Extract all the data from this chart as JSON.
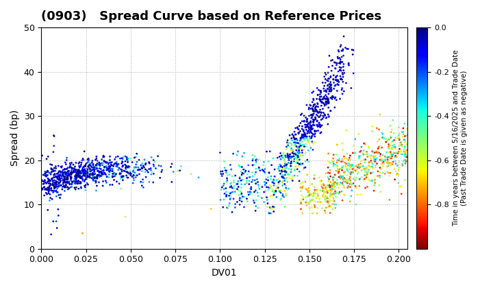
{
  "title": "(0903)   Spread Curve based on Reference Prices",
  "xlabel": "DV01",
  "ylabel": "Spread (bp)",
  "xlim": [
    0.0,
    0.205
  ],
  "ylim": [
    0,
    50
  ],
  "xticks": [
    0.0,
    0.025,
    0.05,
    0.075,
    0.1,
    0.125,
    0.15,
    0.175,
    0.2
  ],
  "yticks": [
    0,
    10,
    20,
    30,
    40,
    50
  ],
  "colorbar_label": "Time in years between 5/16/2025 and Trade Date\n(Past Trade Date is given as negative)",
  "cmap": "jet_r",
  "clim": [
    -1.0,
    0.0
  ],
  "cticks": [
    0.0,
    -0.2,
    -0.4,
    -0.6,
    -0.8
  ],
  "background_color": "#ffffff",
  "grid_color": "#aaaaaa",
  "title_fontsize": 13,
  "label_fontsize": 10,
  "marker_size": 4
}
